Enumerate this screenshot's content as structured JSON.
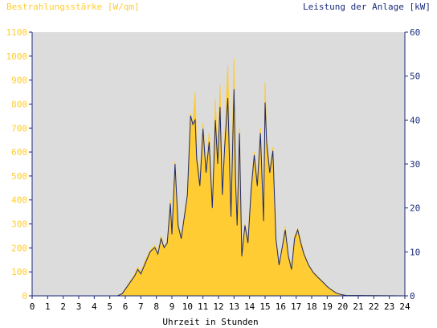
{
  "chart_data": {
    "type": "area",
    "left_axis_title": "Bestrahlungsstärke [W/qm]",
    "right_axis_title": "Leistung der Anlage [kW]",
    "xlabel": "Uhrzeit in Stunden",
    "xlim": [
      0,
      24
    ],
    "ylim_left": [
      0,
      1100
    ],
    "ylim_right": [
      0,
      60
    ],
    "x_ticks": [
      "0",
      "1",
      "2",
      "3",
      "4",
      "5",
      "6",
      "7",
      "8",
      "9",
      "10",
      "11",
      "12",
      "13",
      "14",
      "15",
      "16",
      "17",
      "18",
      "19",
      "20",
      "21",
      "22",
      "23",
      "24"
    ],
    "y_left_ticks": [
      "0",
      "100",
      "200",
      "300",
      "400",
      "500",
      "600",
      "700",
      "800",
      "900",
      "1000",
      "1100"
    ],
    "y_right_ticks": [
      "0",
      "10",
      "20",
      "30",
      "40",
      "50",
      "60"
    ],
    "grid": false,
    "colors": {
      "plot_background": "#dcdcdc",
      "irradiance_fill": "#ffcc33",
      "power_line": "#1a2a7a",
      "left_axis_text": "#ffcc33",
      "right_axis_text": "#1a2a7a",
      "axis_line": "#1a2a7a",
      "x_axis_text": "#000000"
    },
    "series": [
      {
        "axis": "left",
        "x": [
          0,
          5.5,
          5.8,
          6.0,
          6.3,
          6.6,
          6.8,
          7.0,
          7.3,
          7.6,
          7.9,
          8.1,
          8.3,
          8.5,
          8.7,
          8.9,
          9.0,
          9.2,
          9.4,
          9.6,
          9.8,
          10.0,
          10.2,
          10.35,
          10.5,
          10.6,
          10.8,
          11.0,
          11.2,
          11.4,
          11.6,
          11.8,
          11.95,
          12.1,
          12.25,
          12.4,
          12.6,
          12.8,
          13.0,
          13.1,
          13.2,
          13.35,
          13.5,
          13.7,
          13.9,
          14.1,
          14.3,
          14.5,
          14.7,
          14.9,
          15.0,
          15.1,
          15.3,
          15.5,
          15.7,
          15.9,
          16.1,
          16.3,
          16.5,
          16.7,
          16.9,
          17.1,
          17.3,
          17.5,
          17.8,
          18.1,
          18.4,
          18.7,
          19.0,
          19.3,
          19.6,
          19.9,
          20.2,
          24
        ],
        "values": [
          0,
          0,
          10,
          30,
          60,
          90,
          120,
          100,
          150,
          190,
          210,
          180,
          250,
          200,
          230,
          400,
          260,
          560,
          300,
          250,
          340,
          430,
          760,
          720,
          850,
          600,
          480,
          720,
          530,
          680,
          380,
          820,
          560,
          880,
          430,
          650,
          960,
          350,
          990,
          490,
          300,
          700,
          180,
          300,
          240,
          450,
          600,
          480,
          700,
          320,
          890,
          650,
          530,
          620,
          240,
          130,
          200,
          290,
          170,
          120,
          250,
          280,
          230,
          180,
          130,
          100,
          80,
          60,
          40,
          25,
          12,
          5,
          2,
          0
        ]
      },
      {
        "axis": "right",
        "x": [
          0,
          5.5,
          5.8,
          6.0,
          6.3,
          6.6,
          6.8,
          7.0,
          7.3,
          7.6,
          7.9,
          8.1,
          8.3,
          8.5,
          8.7,
          8.9,
          9.0,
          9.2,
          9.4,
          9.6,
          9.8,
          10.0,
          10.2,
          10.35,
          10.5,
          10.6,
          10.8,
          11.0,
          11.2,
          11.4,
          11.6,
          11.8,
          11.95,
          12.1,
          12.25,
          12.4,
          12.6,
          12.8,
          13.0,
          13.1,
          13.2,
          13.35,
          13.5,
          13.7,
          13.9,
          14.1,
          14.3,
          14.5,
          14.7,
          14.9,
          15.0,
          15.1,
          15.3,
          15.5,
          15.7,
          15.9,
          16.1,
          16.3,
          16.5,
          16.7,
          16.9,
          17.1,
          17.3,
          17.5,
          17.8,
          18.1,
          18.4,
          18.7,
          19.0,
          19.3,
          19.6,
          19.9,
          20.2,
          24
        ],
        "values": [
          0,
          0,
          0.5,
          1.5,
          3,
          4.5,
          6,
          5,
          7.5,
          10,
          11,
          9.5,
          13,
          11,
          12,
          21,
          14,
          30,
          16,
          13,
          18,
          23,
          41,
          39,
          40,
          31,
          25,
          38,
          28,
          35,
          20,
          40,
          30,
          43,
          23,
          34,
          45,
          18,
          47,
          26,
          16,
          37,
          9,
          16,
          12,
          24,
          32,
          25,
          37,
          17,
          44,
          35,
          28,
          33,
          13,
          7,
          11,
          15,
          9,
          6,
          13,
          15,
          12,
          9.5,
          7,
          5.3,
          4.2,
          3.2,
          2.1,
          1.3,
          0.6,
          0.3,
          0.1,
          0
        ]
      }
    ]
  }
}
